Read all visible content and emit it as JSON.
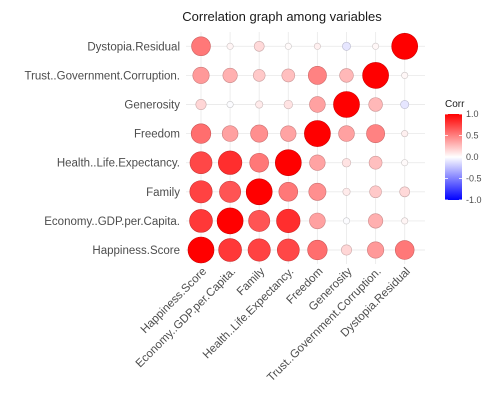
{
  "chart_data": {
    "type": "heatmap",
    "title": "Correlation graph among variables",
    "variables": [
      "Happiness.Score",
      "Economy..GDP.per.Capita.",
      "Family",
      "Health..Life.Expectancy.",
      "Freedom",
      "Generosity",
      "Trust..Government.Corruption.",
      "Dystopia.Residual"
    ],
    "matrix": [
      [
        1.0,
        0.78,
        0.74,
        0.72,
        0.57,
        0.16,
        0.4,
        0.53
      ],
      [
        0.78,
        1.0,
        0.67,
        0.82,
        0.37,
        -0.01,
        0.31,
        0.04
      ],
      [
        0.74,
        0.67,
        1.0,
        0.53,
        0.44,
        0.08,
        0.21,
        0.15
      ],
      [
        0.72,
        0.82,
        0.53,
        1.0,
        0.36,
        0.11,
        0.25,
        0.02
      ],
      [
        0.57,
        0.37,
        0.44,
        0.36,
        1.0,
        0.37,
        0.49,
        0.06
      ],
      [
        0.16,
        -0.01,
        0.08,
        0.11,
        0.37,
        1.0,
        0.28,
        -0.1
      ],
      [
        0.4,
        0.31,
        0.21,
        0.25,
        0.49,
        0.28,
        1.0,
        0.03
      ],
      [
        0.53,
        0.04,
        0.15,
        0.02,
        0.06,
        -0.1,
        0.03,
        1.0
      ]
    ],
    "legend": {
      "title": "Corr",
      "ticks": [
        1.0,
        0.5,
        0.0,
        -0.5,
        -1.0
      ],
      "tick_labels": [
        "1.0",
        "0.5",
        "0.0",
        "-0.5",
        "-1.0"
      ],
      "placement": "right"
    },
    "colors": {
      "high": "#ff0000",
      "mid": "#ffffff",
      "low": "#0000ff"
    },
    "grid": true
  }
}
